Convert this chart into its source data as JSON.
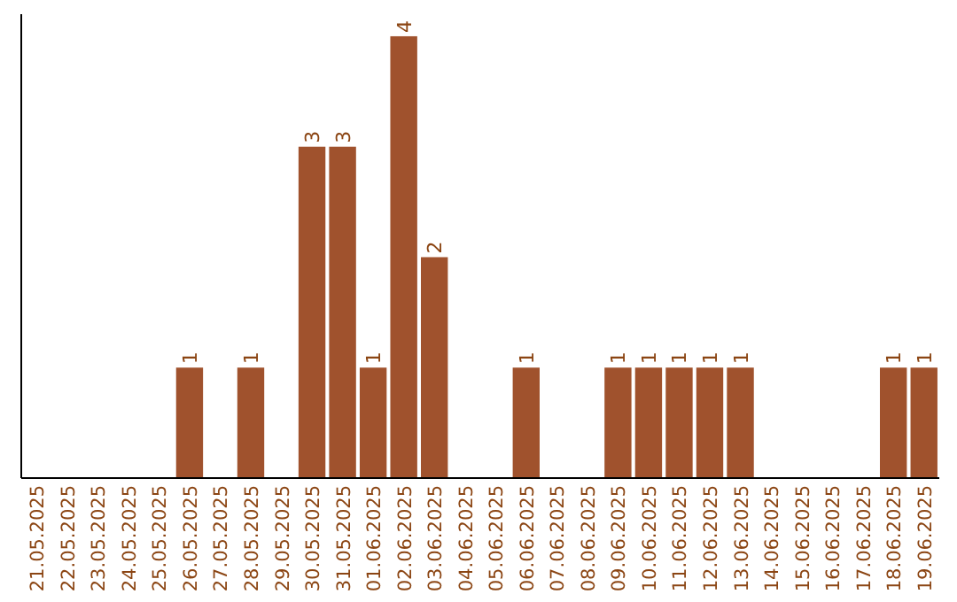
{
  "chart_data": {
    "type": "bar",
    "categories": [
      "21.05.2025",
      "22.05.2025",
      "23.05.2025",
      "24.05.2025",
      "25.05.2025",
      "26.05.2025",
      "27.05.2025",
      "28.05.2025",
      "29.05.2025",
      "30.05.2025",
      "31.05.2025",
      "01.06.2025",
      "02.06.2025",
      "03.06.2025",
      "04.06.2025",
      "05.06.2025",
      "06.06.2025",
      "07.06.2025",
      "08.06.2025",
      "09.06.2025",
      "10.06.2025",
      "11.06.2025",
      "12.06.2025",
      "13.06.2025",
      "14.06.2025",
      "15.06.2025",
      "16.06.2025",
      "17.06.2025",
      "18.06.2025",
      "19.06.2025"
    ],
    "values": [
      0,
      0,
      0,
      0,
      0,
      1,
      0,
      1,
      0,
      3,
      3,
      1,
      4,
      2,
      0,
      0,
      1,
      0,
      0,
      1,
      1,
      1,
      1,
      1,
      0,
      0,
      0,
      0,
      1,
      1
    ],
    "value_labels": [
      null,
      null,
      null,
      null,
      null,
      "1",
      null,
      "1",
      null,
      "3",
      "3",
      "1",
      "4",
      "2",
      null,
      null,
      "1",
      null,
      null,
      "1",
      "1",
      "1",
      "1",
      "1",
      null,
      null,
      null,
      null,
      "1",
      "1"
    ],
    "color": "#a0522d",
    "ylim": [
      0,
      4.2
    ],
    "tick_labels": "x"
  }
}
